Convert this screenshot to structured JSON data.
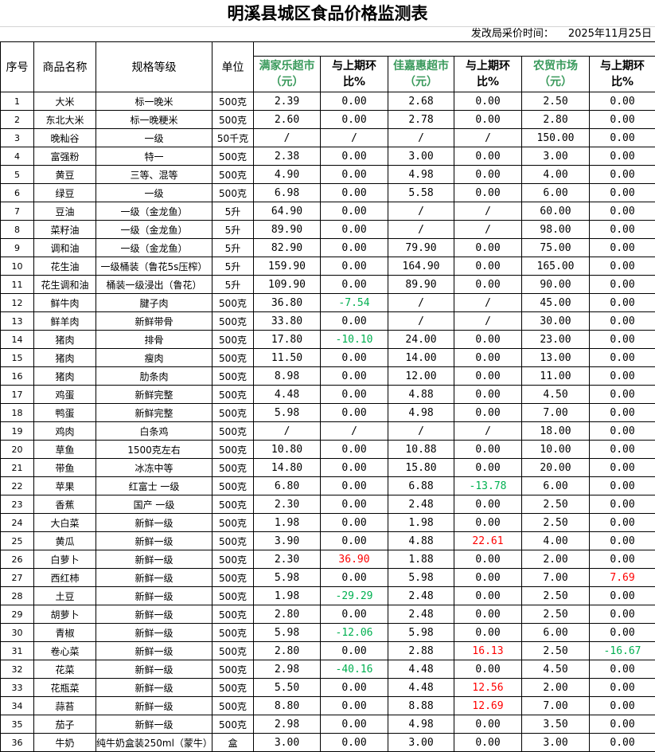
{
  "title": "明溪县城区食品价格监测表",
  "date_label": "发改局采价时间：",
  "date_value": "2025年11月25日",
  "headers": {
    "no": "序号",
    "name": "商品名称",
    "spec": "规格等级",
    "unit": "单位",
    "store1": "满家乐超市（元）",
    "store2": "佳嘉惠超市（元）",
    "store3": "农贸市场（元）",
    "change": "与上期环比%"
  },
  "colors": {
    "store_header": "#3a9a5c",
    "negative": "#00b050",
    "positive": "#ff0000"
  },
  "rows": [
    [
      "1",
      "大米",
      "标一晚米",
      "500克",
      "2.39",
      "0.00",
      "2.68",
      "0.00",
      "2.50",
      "0.00"
    ],
    [
      "2",
      "东北大米",
      "标一晚粳米",
      "500克",
      "2.60",
      "0.00",
      "2.78",
      "0.00",
      "2.80",
      "0.00"
    ],
    [
      "3",
      "晚籼谷",
      "一级",
      "50千克",
      "/",
      "/",
      "/",
      "/",
      "150.00",
      "0.00"
    ],
    [
      "4",
      "富强粉",
      "特一",
      "500克",
      "2.38",
      "0.00",
      "3.00",
      "0.00",
      "3.00",
      "0.00"
    ],
    [
      "5",
      "黄豆",
      "三等、混等",
      "500克",
      "4.90",
      "0.00",
      "4.98",
      "0.00",
      "4.00",
      "0.00"
    ],
    [
      "6",
      "绿豆",
      "一级",
      "500克",
      "6.98",
      "0.00",
      "5.58",
      "0.00",
      "6.00",
      "0.00"
    ],
    [
      "7",
      "豆油",
      "一级（金龙鱼）",
      "5升",
      "64.90",
      "0.00",
      "/",
      "/",
      "60.00",
      "0.00"
    ],
    [
      "8",
      "菜籽油",
      "一级（金龙鱼）",
      "5升",
      "89.90",
      "0.00",
      "/",
      "/",
      "98.00",
      "0.00"
    ],
    [
      "9",
      "调和油",
      "一级（金龙鱼）",
      "5升",
      "82.90",
      "0.00",
      "79.90",
      "0.00",
      "75.00",
      "0.00"
    ],
    [
      "10",
      "花生油",
      "一级桶装（鲁花5s压榨）",
      "5升",
      "159.90",
      "0.00",
      "164.90",
      "0.00",
      "165.00",
      "0.00"
    ],
    [
      "11",
      "花生调和油",
      "桶装一级浸出（鲁花）",
      "5升",
      "109.90",
      "0.00",
      "89.90",
      "0.00",
      "90.00",
      "0.00"
    ],
    [
      "12",
      "鲜牛肉",
      "腱子肉",
      "500克",
      "36.80",
      "-7.54",
      "/",
      "/",
      "45.00",
      "0.00"
    ],
    [
      "13",
      "鲜羊肉",
      "新鲜带骨",
      "500克",
      "33.80",
      "0.00",
      "/",
      "/",
      "30.00",
      "0.00"
    ],
    [
      "14",
      "猪肉",
      "排骨",
      "500克",
      "17.80",
      "-10.10",
      "24.00",
      "0.00",
      "23.00",
      "0.00"
    ],
    [
      "15",
      "猪肉",
      "瘦肉",
      "500克",
      "11.50",
      "0.00",
      "14.00",
      "0.00",
      "13.00",
      "0.00"
    ],
    [
      "16",
      "猪肉",
      "肋条肉",
      "500克",
      "8.98",
      "0.00",
      "12.00",
      "0.00",
      "11.00",
      "0.00"
    ],
    [
      "17",
      "鸡蛋",
      "新鲜完整",
      "500克",
      "4.48",
      "0.00",
      "4.88",
      "0.00",
      "4.50",
      "0.00"
    ],
    [
      "18",
      "鸭蛋",
      "新鲜完整",
      "500克",
      "5.98",
      "0.00",
      "4.98",
      "0.00",
      "7.00",
      "0.00"
    ],
    [
      "19",
      "鸡肉",
      "白条鸡",
      "500克",
      "/",
      "/",
      "/",
      "/",
      "18.00",
      "0.00"
    ],
    [
      "20",
      "草鱼",
      "1500克左右",
      "500克",
      "10.80",
      "0.00",
      "10.88",
      "0.00",
      "10.00",
      "0.00"
    ],
    [
      "21",
      "带鱼",
      "冰冻中等",
      "500克",
      "14.80",
      "0.00",
      "15.80",
      "0.00",
      "20.00",
      "0.00"
    ],
    [
      "22",
      "苹果",
      "红富士 一级",
      "500克",
      "6.80",
      "0.00",
      "6.88",
      "-13.78",
      "6.00",
      "0.00"
    ],
    [
      "23",
      "香蕉",
      "国产 一级",
      "500克",
      "2.30",
      "0.00",
      "2.48",
      "0.00",
      "2.50",
      "0.00"
    ],
    [
      "24",
      "大白菜",
      "新鲜一级",
      "500克",
      "1.98",
      "0.00",
      "1.98",
      "0.00",
      "2.50",
      "0.00"
    ],
    [
      "25",
      "黄瓜",
      "新鲜一级",
      "500克",
      "3.90",
      "0.00",
      "4.88",
      "22.61",
      "4.00",
      "0.00"
    ],
    [
      "26",
      "白萝卜",
      "新鲜一级",
      "500克",
      "2.30",
      "36.90",
      "1.88",
      "0.00",
      "2.00",
      "0.00"
    ],
    [
      "27",
      "西红柿",
      "新鲜一级",
      "500克",
      "5.98",
      "0.00",
      "5.98",
      "0.00",
      "7.00",
      "7.69"
    ],
    [
      "28",
      "土豆",
      "新鲜一级",
      "500克",
      "1.98",
      "-29.29",
      "2.48",
      "0.00",
      "2.50",
      "0.00"
    ],
    [
      "29",
      "胡萝卜",
      "新鲜一级",
      "500克",
      "2.80",
      "0.00",
      "2.48",
      "0.00",
      "2.50",
      "0.00"
    ],
    [
      "30",
      "青椒",
      "新鲜一级",
      "500克",
      "5.98",
      "-12.06",
      "5.98",
      "0.00",
      "6.00",
      "0.00"
    ],
    [
      "31",
      "卷心菜",
      "新鲜一级",
      "500克",
      "2.80",
      "0.00",
      "2.88",
      "16.13",
      "2.50",
      "-16.67"
    ],
    [
      "32",
      "花菜",
      "新鲜一级",
      "500克",
      "2.98",
      "-40.16",
      "4.48",
      "0.00",
      "4.50",
      "0.00"
    ],
    [
      "33",
      "花瓶菜",
      "新鲜一级",
      "500克",
      "5.50",
      "0.00",
      "4.48",
      "12.56",
      "2.00",
      "0.00"
    ],
    [
      "34",
      "蒜苔",
      "新鲜一级",
      "500克",
      "8.80",
      "0.00",
      "8.88",
      "12.69",
      "7.00",
      "0.00"
    ],
    [
      "35",
      "茄子",
      "新鲜一级",
      "500克",
      "2.98",
      "0.00",
      "4.98",
      "0.00",
      "3.50",
      "0.00"
    ],
    [
      "36",
      "牛奶",
      "纯牛奶盒装250ml（蒙牛）",
      "盒",
      "3.00",
      "0.00",
      "3.00",
      "0.00",
      "3.00",
      "0.00"
    ]
  ]
}
